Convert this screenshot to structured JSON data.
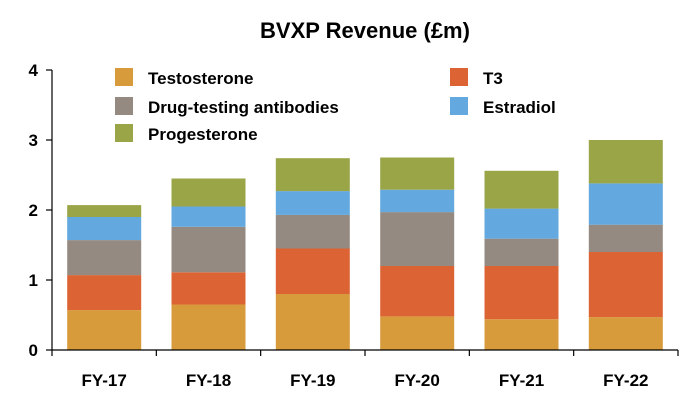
{
  "chart_data": {
    "type": "bar",
    "stacked": true,
    "title": "BVXP Revenue (£m)",
    "xlabel": "",
    "ylabel": "",
    "categories": [
      "FY-17",
      "FY-18",
      "FY-19",
      "FY-20",
      "FY-21",
      "FY-22"
    ],
    "ylim": [
      0,
      4
    ],
    "yticks": [
      "0",
      "1",
      "2",
      "3",
      "4"
    ],
    "grid": false,
    "legend_position": "top, inside plot",
    "series": [
      {
        "name": "Testosterone",
        "color": "#D89B3C",
        "values": [
          0.57,
          0.65,
          0.8,
          0.48,
          0.44,
          0.47
        ]
      },
      {
        "name": "T3",
        "color": "#DC6434",
        "values": [
          0.5,
          0.46,
          0.65,
          0.72,
          0.76,
          0.93
        ]
      },
      {
        "name": "Drug-testing antibodies",
        "color": "#958A82",
        "values": [
          0.5,
          0.65,
          0.48,
          0.77,
          0.39,
          0.39
        ]
      },
      {
        "name": "Estradiol",
        "color": "#63A8DE",
        "values": [
          0.33,
          0.29,
          0.34,
          0.32,
          0.43,
          0.59
        ]
      },
      {
        "name": "Progesterone",
        "color": "#9AA548",
        "values": [
          0.17,
          0.4,
          0.47,
          0.46,
          0.54,
          0.62
        ]
      }
    ]
  }
}
